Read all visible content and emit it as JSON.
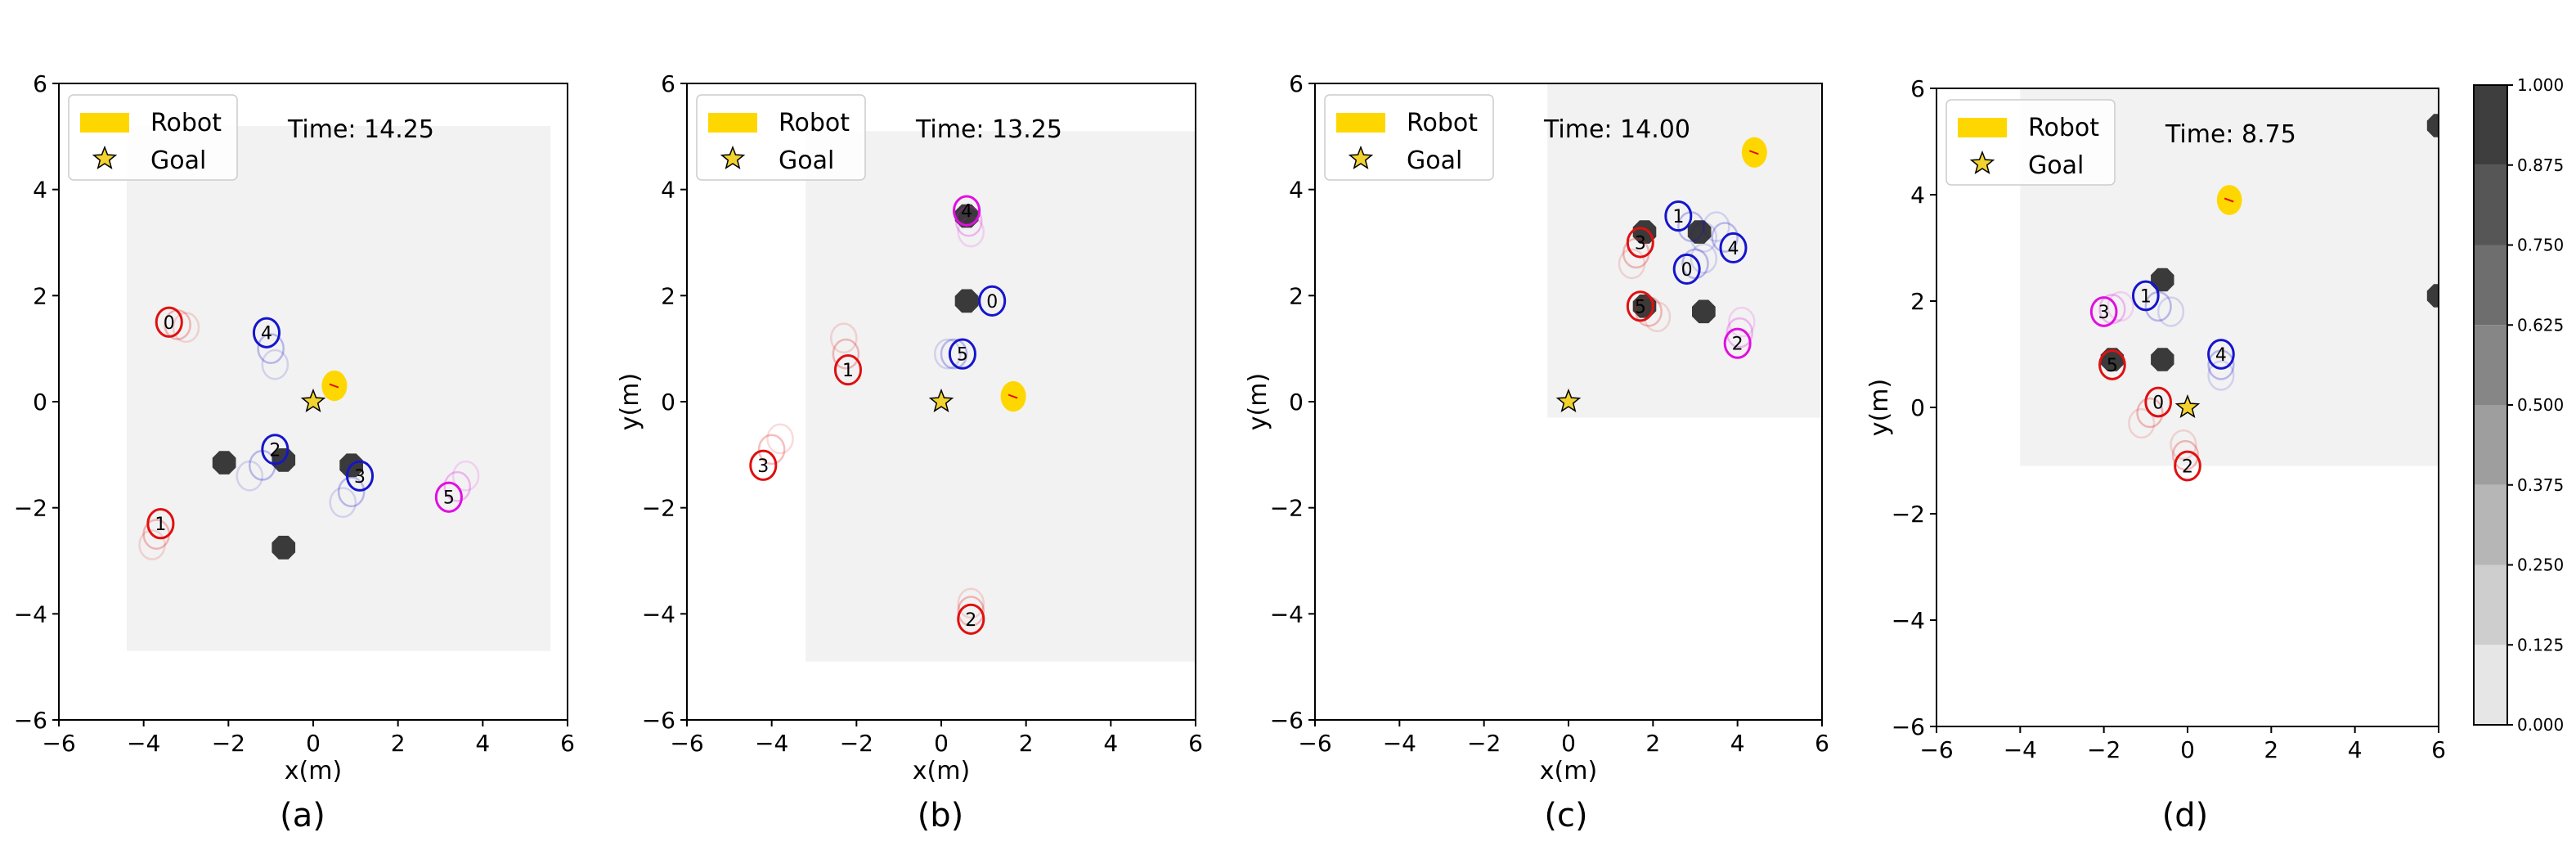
{
  "figure": {
    "panel_labels": [
      "(a)",
      "(b)",
      "(c)",
      "(d)"
    ],
    "legend": {
      "robot_label": "Robot",
      "goal_label": "Goal"
    },
    "colors": {
      "robot": "#ffd700",
      "goal": "#f2d22e",
      "human_red": "#e01010",
      "human_blue": "#1515cc",
      "human_magenta": "#e010e0",
      "obstacle": "#3a3a3a",
      "map_bg": "#f2f2f2"
    },
    "colorbar": {
      "ticks": [
        "1.000",
        "0.875",
        "0.750",
        "0.625",
        "0.500",
        "0.375",
        "0.250",
        "0.125",
        "0.000"
      ],
      "min": 0,
      "max": 1
    }
  },
  "chart_data": [
    {
      "type": "scatter",
      "panel": "(a)",
      "time_text": "Time: 14.25",
      "xlabel": "x(m)",
      "ylabel": "",
      "xlim": [
        -6,
        6
      ],
      "ylim": [
        -6,
        6
      ],
      "xticks": [
        "−6",
        "−4",
        "−2",
        "0",
        "2",
        "4",
        "6"
      ],
      "yticks": [
        "−6",
        "−4",
        "−2",
        "0",
        "2",
        "4",
        "6"
      ],
      "grid": false,
      "legend_position": "top-left",
      "map_region": [
        -4.4,
        5.6,
        -4.7,
        5.2
      ],
      "robot": [
        0.5,
        0.3
      ],
      "goal": [
        0,
        0
      ],
      "humans": [
        {
          "id": "0",
          "x": -3.4,
          "y": 1.5,
          "color": "red",
          "trail": [
            [
              -3.2,
              1.45
            ],
            [
              -3.0,
              1.4
            ]
          ]
        },
        {
          "id": "4",
          "x": -1.1,
          "y": 1.3,
          "color": "blue",
          "trail": [
            [
              -1.0,
              1.0
            ],
            [
              -0.9,
              0.7
            ]
          ]
        },
        {
          "id": "2",
          "x": -0.9,
          "y": -0.9,
          "color": "blue",
          "trail": [
            [
              -1.2,
              -1.2
            ],
            [
              -1.5,
              -1.4
            ]
          ]
        },
        {
          "id": "3",
          "x": 1.1,
          "y": -1.4,
          "color": "blue",
          "trail": [
            [
              0.9,
              -1.7
            ],
            [
              0.7,
              -1.9
            ]
          ]
        },
        {
          "id": "5",
          "x": 3.2,
          "y": -1.8,
          "color": "magenta",
          "trail": [
            [
              3.4,
              -1.6
            ],
            [
              3.6,
              -1.4
            ]
          ]
        },
        {
          "id": "1",
          "x": -3.6,
          "y": -2.3,
          "color": "red",
          "trail": [
            [
              -3.7,
              -2.5
            ],
            [
              -3.8,
              -2.7
            ]
          ]
        }
      ],
      "obstacles": [
        {
          "x": -0.7,
          "y": -1.1
        },
        {
          "x": -2.1,
          "y": -1.15
        },
        {
          "x": 0.9,
          "y": -1.2
        },
        {
          "x": -0.7,
          "y": -2.75
        }
      ]
    },
    {
      "type": "scatter",
      "panel": "(b)",
      "time_text": "Time: 13.25",
      "xlabel": "x(m)",
      "ylabel": "y(m)",
      "xlim": [
        -6,
        6
      ],
      "ylim": [
        -6,
        6
      ],
      "xticks": [
        "−6",
        "−4",
        "−2",
        "0",
        "2",
        "4",
        "6"
      ],
      "yticks": [
        "−6",
        "−4",
        "−2",
        "0",
        "2",
        "4",
        "6"
      ],
      "grid": false,
      "legend_position": "top-left",
      "map_region": [
        -3.2,
        6.0,
        -4.9,
        5.1
      ],
      "robot": [
        1.7,
        0.1
      ],
      "goal": [
        0,
        0
      ],
      "humans": [
        {
          "id": "4",
          "x": 0.6,
          "y": 3.6,
          "color": "magenta",
          "trail": [
            [
              0.65,
              3.4
            ],
            [
              0.7,
              3.2
            ]
          ]
        },
        {
          "id": "0",
          "x": 1.2,
          "y": 1.9,
          "color": "blue",
          "trail": []
        },
        {
          "id": "5",
          "x": 0.5,
          "y": 0.9,
          "color": "blue",
          "trail": [
            [
              0.3,
              0.9
            ],
            [
              0.15,
              0.9
            ]
          ]
        },
        {
          "id": "1",
          "x": -2.2,
          "y": 0.6,
          "color": "red",
          "trail": [
            [
              -2.25,
              0.9
            ],
            [
              -2.3,
              1.2
            ]
          ]
        },
        {
          "id": "3",
          "x": -4.2,
          "y": -1.2,
          "color": "red",
          "trail": [
            [
              -4.0,
              -0.9
            ],
            [
              -3.8,
              -0.7
            ]
          ]
        },
        {
          "id": "2",
          "x": 0.7,
          "y": -4.1,
          "color": "red",
          "trail": [
            [
              0.7,
              -3.95
            ],
            [
              0.7,
              -3.8
            ]
          ]
        }
      ],
      "obstacles": [
        {
          "x": 0.6,
          "y": 3.5
        },
        {
          "x": 0.6,
          "y": 1.9
        }
      ]
    },
    {
      "type": "scatter",
      "panel": "(c)",
      "time_text": "Time: 14.00",
      "xlabel": "x(m)",
      "ylabel": "y(m)",
      "xlim": [
        -6,
        6
      ],
      "ylim": [
        -6,
        6
      ],
      "xticks": [
        "−6",
        "−4",
        "−2",
        "0",
        "2",
        "4",
        "6"
      ],
      "yticks": [
        "−6",
        "−4",
        "−2",
        "0",
        "2",
        "4",
        "6"
      ],
      "grid": false,
      "legend_position": "top-left",
      "map_region": [
        -0.5,
        6.0,
        -0.3,
        6.0
      ],
      "robot": [
        4.4,
        4.7
      ],
      "goal": [
        0,
        0
      ],
      "humans": [
        {
          "id": "1",
          "x": 2.6,
          "y": 3.5,
          "color": "blue",
          "trail": [
            [
              2.9,
              3.3
            ],
            [
              3.2,
              3.1
            ]
          ]
        },
        {
          "id": "3",
          "x": 1.7,
          "y": 3.0,
          "color": "red",
          "trail": [
            [
              1.6,
              2.8
            ],
            [
              1.5,
              2.6
            ]
          ]
        },
        {
          "id": "0",
          "x": 2.8,
          "y": 2.5,
          "color": "blue",
          "trail": [
            [
              3.0,
              2.6
            ],
            [
              3.2,
              2.7
            ]
          ]
        },
        {
          "id": "4",
          "x": 3.9,
          "y": 2.9,
          "color": "blue",
          "trail": [
            [
              3.7,
              3.1
            ],
            [
              3.5,
              3.3
            ]
          ]
        },
        {
          "id": "5",
          "x": 1.7,
          "y": 1.8,
          "color": "red",
          "trail": [
            [
              1.9,
              1.7
            ],
            [
              2.1,
              1.6
            ]
          ]
        },
        {
          "id": "2",
          "x": 4.0,
          "y": 1.1,
          "color": "magenta",
          "trail": [
            [
              4.05,
              1.3
            ],
            [
              4.1,
              1.5
            ]
          ]
        }
      ],
      "obstacles": [
        {
          "x": 1.8,
          "y": 3.2
        },
        {
          "x": 3.1,
          "y": 3.2
        },
        {
          "x": 1.8,
          "y": 1.8
        },
        {
          "x": 3.2,
          "y": 1.7
        }
      ]
    },
    {
      "type": "scatter",
      "panel": "(d)",
      "time_text": "Time: 8.75",
      "xlabel": "",
      "ylabel": "y(m)",
      "xlim": [
        -6,
        6
      ],
      "ylim": [
        -6,
        6
      ],
      "xticks": [
        "−6",
        "−4",
        "−2",
        "0",
        "2",
        "4",
        "6"
      ],
      "yticks": [
        "−6",
        "−4",
        "−2",
        "0",
        "2",
        "4",
        "6"
      ],
      "grid": false,
      "legend_position": "top-left",
      "map_region": [
        -4.0,
        6.0,
        -1.1,
        6.0
      ],
      "robot": [
        1.0,
        3.9
      ],
      "goal": [
        0,
        0
      ],
      "humans": [
        {
          "id": "1",
          "x": -1.0,
          "y": 2.1,
          "color": "blue",
          "trail": [
            [
              -0.7,
              1.9
            ],
            [
              -0.4,
              1.8
            ]
          ]
        },
        {
          "id": "3",
          "x": -2.0,
          "y": 1.8,
          "color": "magenta",
          "trail": [
            [
              -1.8,
              1.85
            ],
            [
              -1.6,
              1.9
            ]
          ]
        },
        {
          "id": "5",
          "x": -1.8,
          "y": 0.8,
          "color": "red",
          "trail": []
        },
        {
          "id": "0",
          "x": -0.7,
          "y": 0.1,
          "color": "red",
          "trail": [
            [
              -0.9,
              -0.1
            ],
            [
              -1.1,
              -0.3
            ]
          ]
        },
        {
          "id": "4",
          "x": 0.8,
          "y": 1.0,
          "color": "blue",
          "trail": [
            [
              0.8,
              0.8
            ],
            [
              0.8,
              0.6
            ]
          ]
        },
        {
          "id": "2",
          "x": 0.0,
          "y": -1.1,
          "color": "red",
          "trail": [
            [
              -0.05,
              -0.9
            ],
            [
              -0.1,
              -0.7
            ]
          ]
        }
      ],
      "obstacles": [
        {
          "x": -0.6,
          "y": 2.4
        },
        {
          "x": -1.8,
          "y": 0.9
        },
        {
          "x": -0.6,
          "y": 0.9
        },
        {
          "x": 6.0,
          "y": 5.3
        },
        {
          "x": 6.0,
          "y": 2.1
        }
      ]
    }
  ]
}
